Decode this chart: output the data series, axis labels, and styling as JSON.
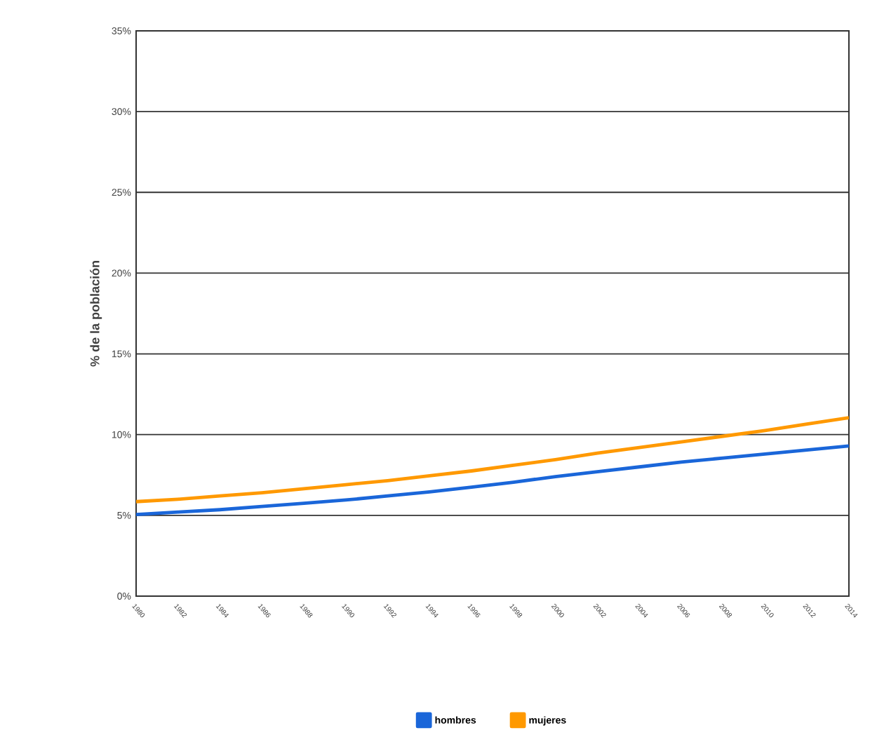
{
  "chart_data": {
    "type": "line",
    "ylabel": "% de la población",
    "categories": [
      "1980",
      "1982",
      "1984",
      "1986",
      "1988",
      "1990",
      "1992",
      "1994",
      "1996",
      "1998",
      "2000",
      "2002",
      "2004",
      "2006",
      "2008",
      "2010",
      "2012",
      "2014"
    ],
    "series": [
      {
        "name": "hombres",
        "color": "#1a66d9",
        "values": [
          5.05,
          5.2,
          5.35,
          5.55,
          5.75,
          5.95,
          6.2,
          6.45,
          6.75,
          7.05,
          7.4,
          7.7,
          8.0,
          8.3,
          8.55,
          8.8,
          9.05,
          9.3
        ]
      },
      {
        "name": "mujeres",
        "color": "#ff9900",
        "values": [
          5.85,
          6.0,
          6.2,
          6.4,
          6.65,
          6.9,
          7.15,
          7.45,
          7.75,
          8.1,
          8.45,
          8.85,
          9.2,
          9.55,
          9.9,
          10.25,
          10.65,
          11.05
        ]
      }
    ],
    "ylim": [
      0,
      35
    ],
    "yticks": [
      {
        "value": 0,
        "label": "0%"
      },
      {
        "value": 5,
        "label": "5%"
      },
      {
        "value": 10,
        "label": "10%"
      },
      {
        "value": 15,
        "label": "15%"
      },
      {
        "value": 20,
        "label": "20%"
      },
      {
        "value": 25,
        "label": "25%"
      },
      {
        "value": 30,
        "label": "30%"
      },
      {
        "value": 35,
        "label": "35%"
      }
    ],
    "grid": "y",
    "legend": "bottom",
    "marker": "none",
    "line_style": "solid"
  }
}
